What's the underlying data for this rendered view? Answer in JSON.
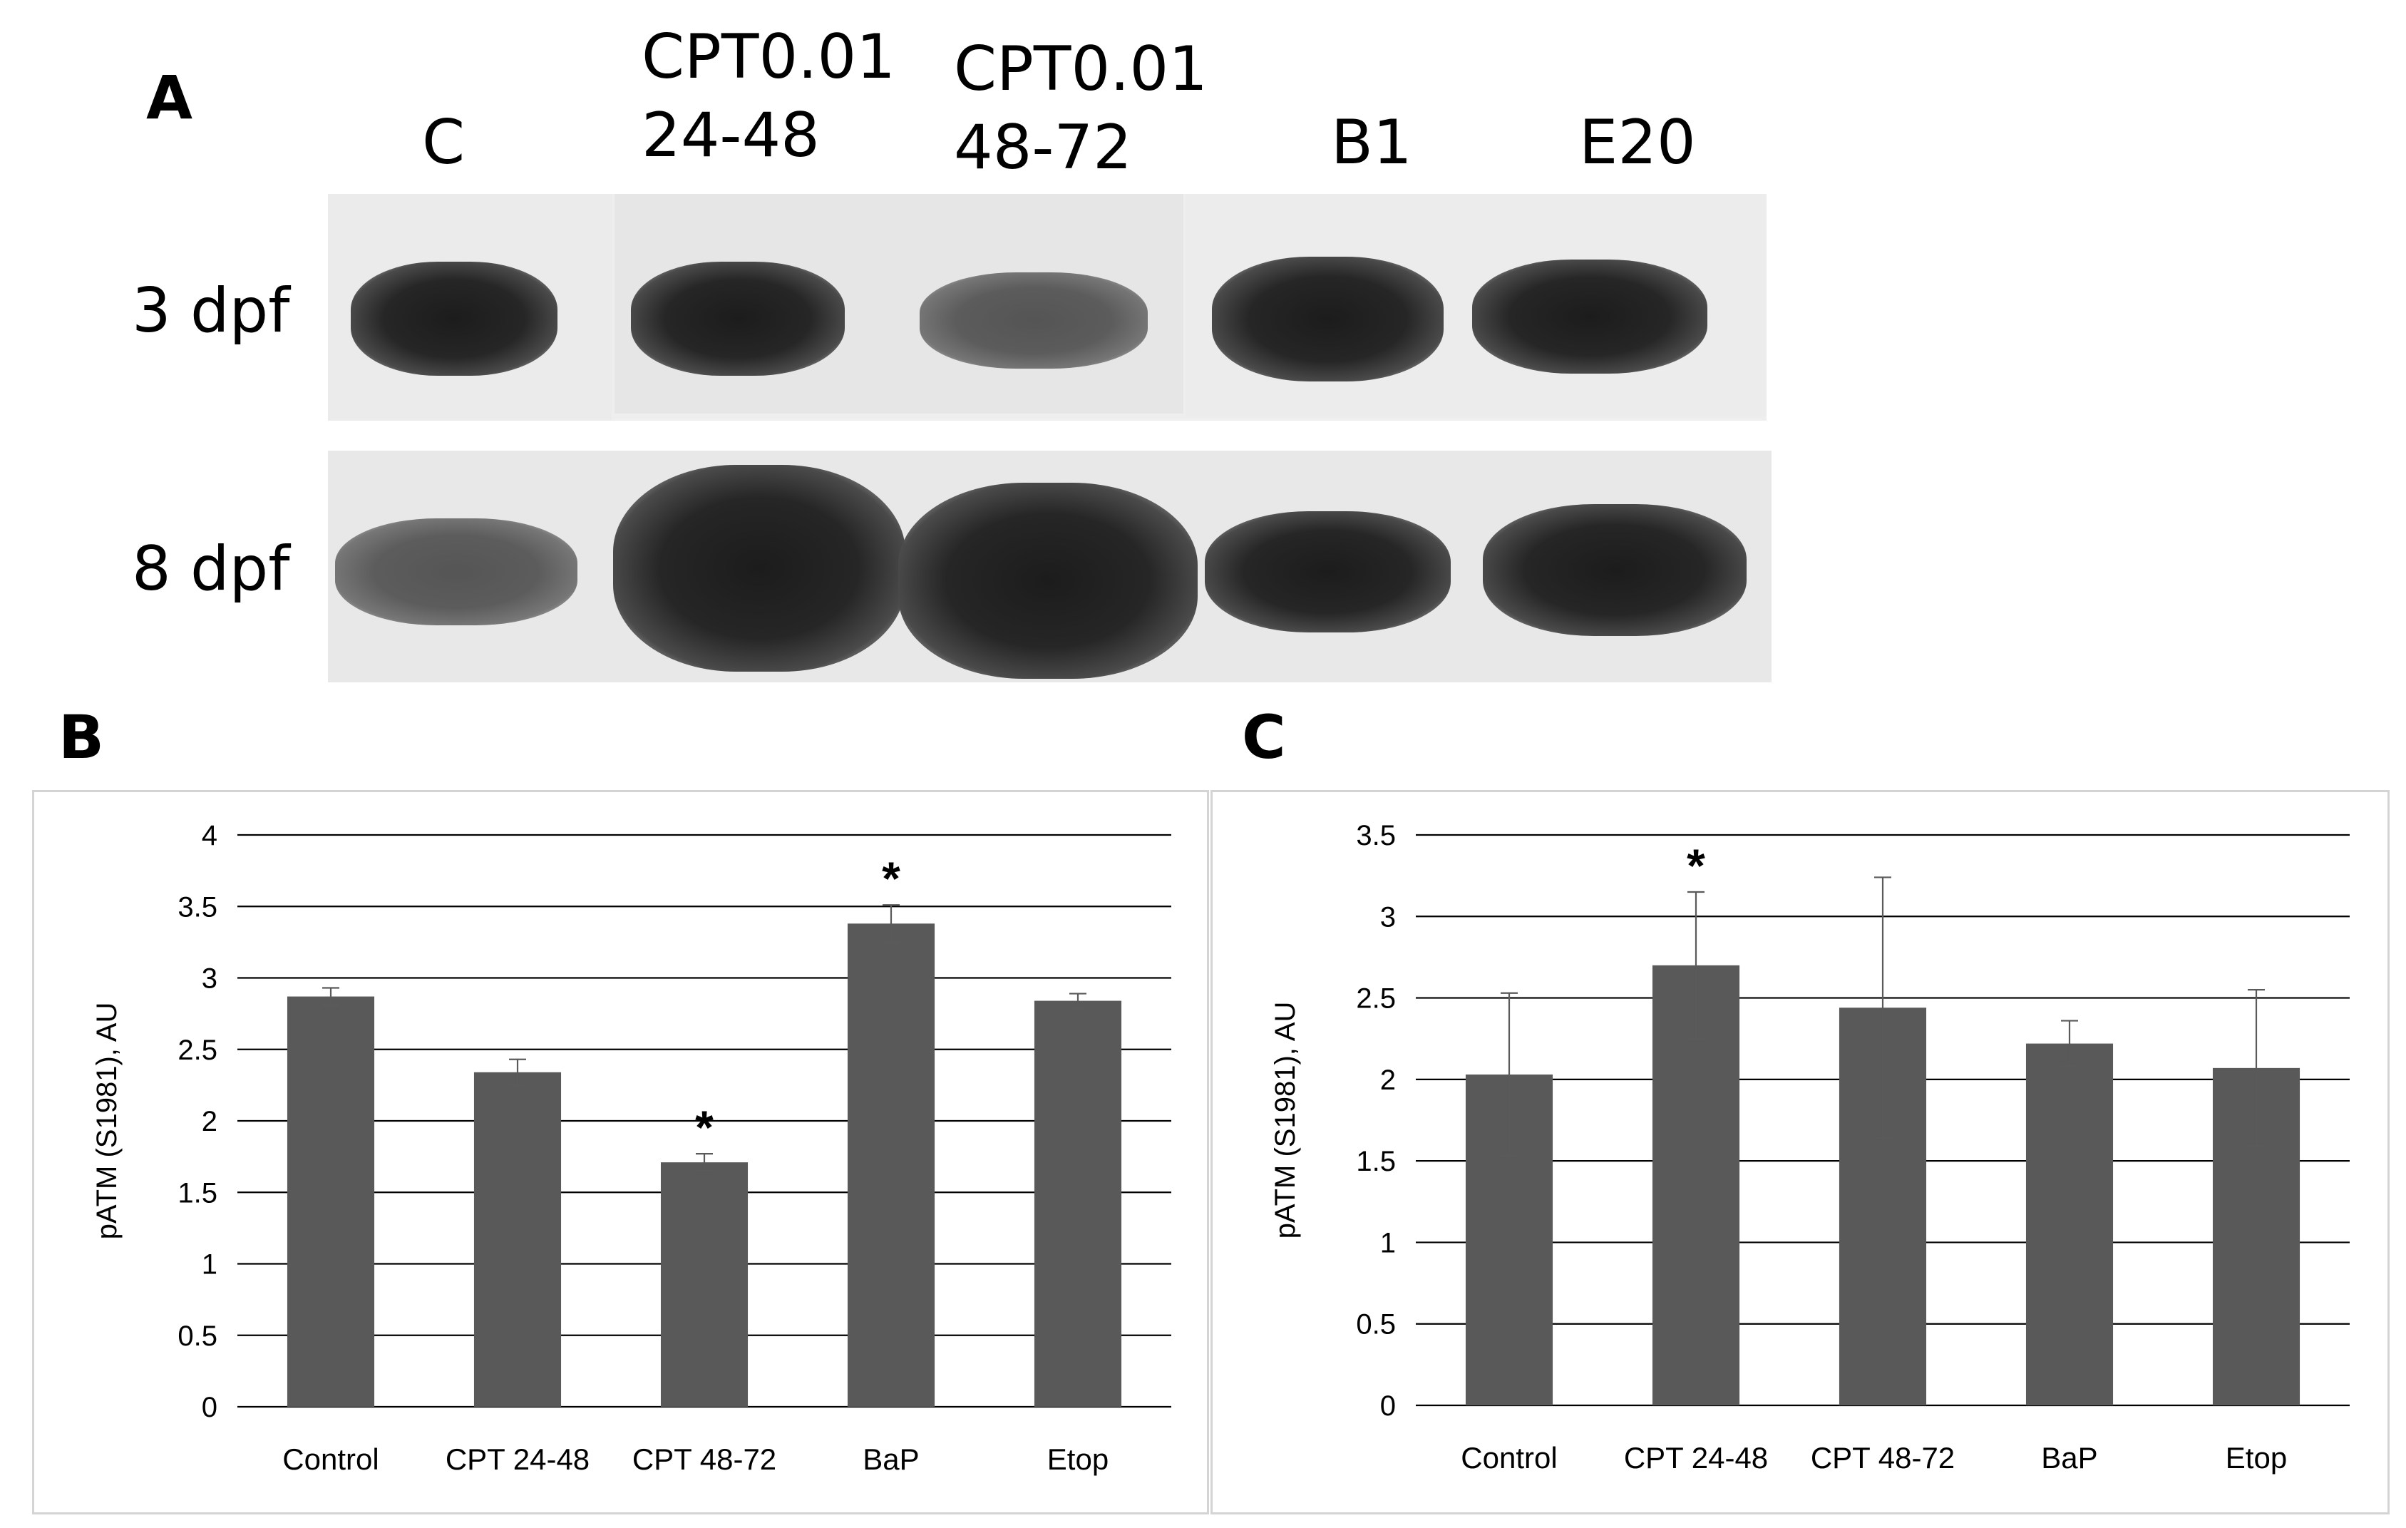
{
  "figure": {
    "panel_a": {
      "letter": "A",
      "lane_labels": [
        {
          "line1": "C",
          "line2": ""
        },
        {
          "line1": "CPT0.01",
          "line2": "24-48"
        },
        {
          "line1": "CPT0.01",
          "line2": "48-72"
        },
        {
          "line1": "B1",
          "line2": ""
        },
        {
          "line1": "E20",
          "line2": ""
        }
      ],
      "row_labels": [
        "3 dpf",
        "8 dpf"
      ]
    },
    "panel_b": {
      "letter": "B"
    },
    "panel_c": {
      "letter": "C"
    }
  },
  "chart_data": [
    {
      "type": "bar",
      "panel": "B",
      "title": "",
      "xlabel": "",
      "ylabel": "pATM (S1981), AU",
      "categories": [
        "Control",
        "CPT 24-48",
        "CPT 48-72",
        "BaP",
        "Etop"
      ],
      "values": [
        2.87,
        2.34,
        1.71,
        3.38,
        2.84
      ],
      "errors": [
        0.06,
        0.09,
        0.06,
        0.13,
        0.05
      ],
      "significance": [
        "",
        "",
        "*",
        "*",
        ""
      ],
      "ylim": [
        0,
        4
      ],
      "yticks": [
        0,
        0.5,
        1,
        1.5,
        2,
        2.5,
        3,
        3.5,
        4
      ],
      "ytick_labels": [
        "0",
        "0.5",
        "1",
        "1.5",
        "2",
        "2.5",
        "3",
        "3.5",
        "4"
      ],
      "grid": true,
      "bar_color": "#595959"
    },
    {
      "type": "bar",
      "panel": "C",
      "title": "",
      "xlabel": "",
      "ylabel": "pATM (S1981), AU",
      "categories": [
        "Control",
        "CPT 24-48",
        "CPT 48-72",
        "BaP",
        "Etop"
      ],
      "values": [
        2.03,
        2.7,
        2.44,
        2.22,
        2.07
      ],
      "errors": [
        0.5,
        0.45,
        0.8,
        0.14,
        0.48
      ],
      "significance": [
        "",
        "*",
        "",
        "",
        ""
      ],
      "ylim": [
        0,
        3.5
      ],
      "yticks": [
        0,
        0.5,
        1,
        1.5,
        2,
        2.5,
        3,
        3.5
      ],
      "ytick_labels": [
        "0",
        "0.5",
        "1",
        "1.5",
        "2",
        "2.5",
        "3",
        "3.5"
      ],
      "grid": true,
      "bar_color": "#595959"
    }
  ]
}
